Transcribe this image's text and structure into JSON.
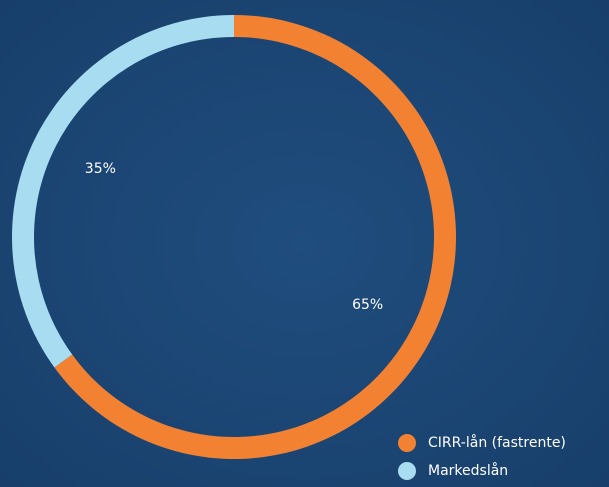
{
  "chart_data": {
    "type": "donut",
    "categories": [
      "CIRR-lån (fastrente)",
      "Markedslån"
    ],
    "values": [
      65,
      35
    ],
    "value_labels": [
      "65%",
      "35%"
    ],
    "colors": [
      "#f28232",
      "#a8dcf0"
    ]
  }
}
